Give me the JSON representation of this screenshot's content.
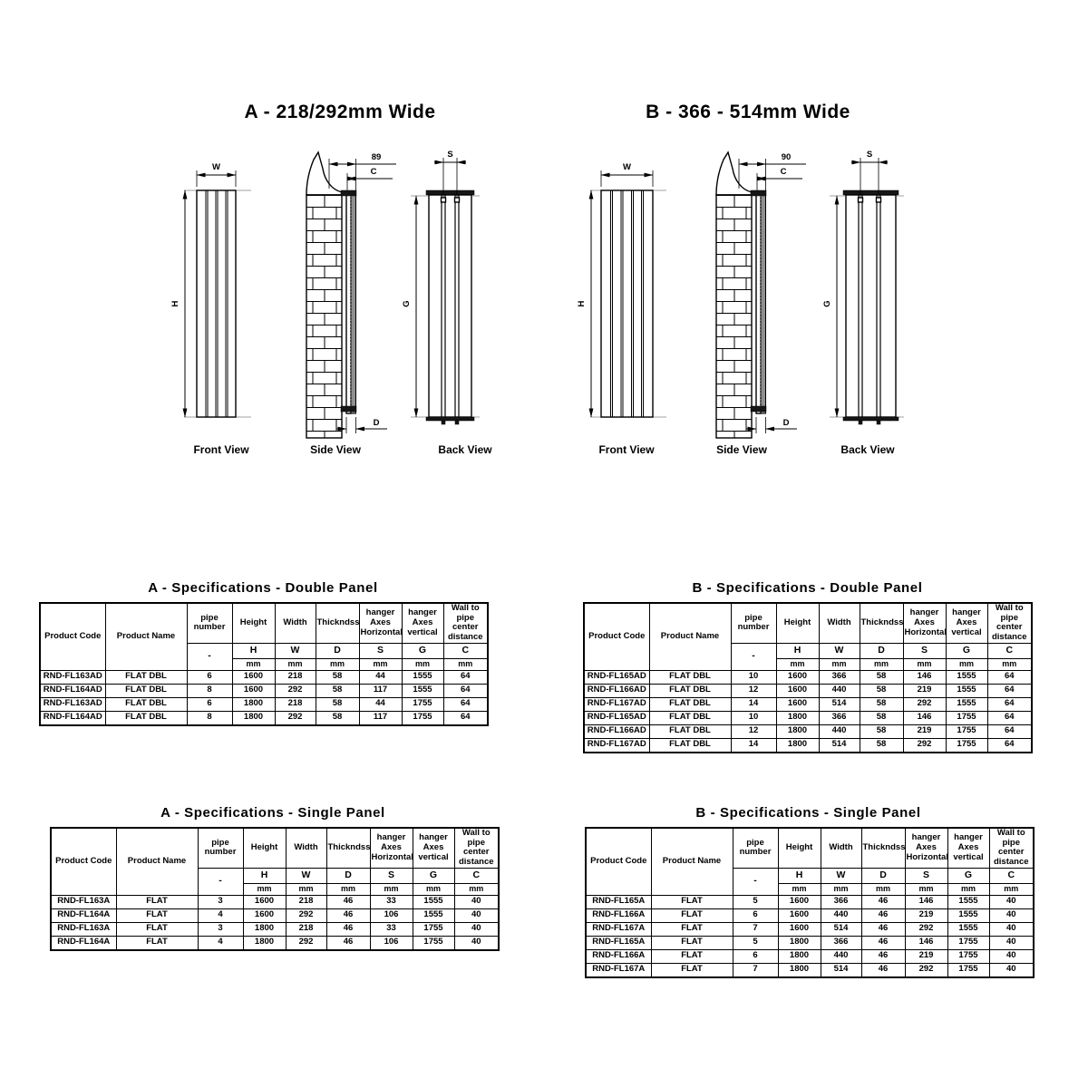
{
  "sections": {
    "a": {
      "title": "A - 218/292mm Wide",
      "views": {
        "front": "Front View",
        "side": "Side View",
        "back": "Back View"
      },
      "dims": {
        "w": "W",
        "h": "H",
        "s": "S",
        "g": "G",
        "c": "C",
        "d": "D",
        "wall_offset": "89"
      }
    },
    "b": {
      "title": "B - 366 - 514mm Wide",
      "views": {
        "front": "Front View",
        "side": "Side View",
        "back": "Back View"
      },
      "dims": {
        "w": "W",
        "h": "H",
        "s": "S",
        "g": "G",
        "c": "C",
        "d": "D",
        "wall_offset": "90"
      }
    }
  },
  "colors": {
    "line": "#000000",
    "guide": "#b3b3b3",
    "panel_fill": "#8f8f8f"
  },
  "spec_tables": [
    {
      "id": "a-double",
      "title": "A - Specifications - Double Panel",
      "headers": [
        "Product Code",
        "Product Name",
        "pipe number",
        "Height",
        "Width",
        "Thickndss",
        "hanger Axes Horizontal",
        "hanger Axes vertical",
        "Wall to pipe center distance"
      ],
      "sub_headers": [
        "-",
        "H",
        "W",
        "D",
        "S",
        "G",
        "C"
      ],
      "units": [
        "mm",
        "mm",
        "mm",
        "mm",
        "mm",
        "mm"
      ],
      "rows": [
        [
          "RND-FL163AD",
          "FLAT DBL",
          "6",
          "1600",
          "218",
          "58",
          "44",
          "1555",
          "64"
        ],
        [
          "RND-FL164AD",
          "FLAT DBL",
          "8",
          "1600",
          "292",
          "58",
          "117",
          "1555",
          "64"
        ],
        [
          "RND-FL163AD",
          "FLAT DBL",
          "6",
          "1800",
          "218",
          "58",
          "44",
          "1755",
          "64"
        ],
        [
          "RND-FL164AD",
          "FLAT DBL",
          "8",
          "1800",
          "292",
          "58",
          "117",
          "1755",
          "64"
        ]
      ]
    },
    {
      "id": "b-double",
      "title": "B - Specifications - Double Panel",
      "headers": [
        "Product Code",
        "Product Name",
        "pipe number",
        "Height",
        "Width",
        "Thickndss",
        "hanger Axes Horizontal",
        "hanger Axes vertical",
        "Wall to pipe center distance"
      ],
      "sub_headers": [
        "-",
        "H",
        "W",
        "D",
        "S",
        "G",
        "C"
      ],
      "units": [
        "mm",
        "mm",
        "mm",
        "mm",
        "mm",
        "mm"
      ],
      "rows": [
        [
          "RND-FL165AD",
          "FLAT DBL",
          "10",
          "1600",
          "366",
          "58",
          "146",
          "1555",
          "64"
        ],
        [
          "RND-FL166AD",
          "FLAT DBL",
          "12",
          "1600",
          "440",
          "58",
          "219",
          "1555",
          "64"
        ],
        [
          "RND-FL167AD",
          "FLAT DBL",
          "14",
          "1600",
          "514",
          "58",
          "292",
          "1555",
          "64"
        ],
        [
          "RND-FL165AD",
          "FLAT DBL",
          "10",
          "1800",
          "366",
          "58",
          "146",
          "1755",
          "64"
        ],
        [
          "RND-FL166AD",
          "FLAT DBL",
          "12",
          "1800",
          "440",
          "58",
          "219",
          "1755",
          "64"
        ],
        [
          "RND-FL167AD",
          "FLAT DBL",
          "14",
          "1800",
          "514",
          "58",
          "292",
          "1755",
          "64"
        ]
      ]
    },
    {
      "id": "a-single",
      "title": "A - Specifications - Single Panel",
      "headers": [
        "Product Code",
        "Product Name",
        "pipe number",
        "Height",
        "Width",
        "Thickndss",
        "hanger Axes Horizontal",
        "hanger Axes vertical",
        "Wall to pipe center distance"
      ],
      "sub_headers": [
        "-",
        "H",
        "W",
        "D",
        "S",
        "G",
        "C"
      ],
      "units": [
        "mm",
        "mm",
        "mm",
        "mm",
        "mm",
        "mm"
      ],
      "rows": [
        [
          "RND-FL163A",
          "FLAT",
          "3",
          "1600",
          "218",
          "46",
          "33",
          "1555",
          "40"
        ],
        [
          "RND-FL164A",
          "FLAT",
          "4",
          "1600",
          "292",
          "46",
          "106",
          "1555",
          "40"
        ],
        [
          "RND-FL163A",
          "FLAT",
          "3",
          "1800",
          "218",
          "46",
          "33",
          "1755",
          "40"
        ],
        [
          "RND-FL164A",
          "FLAT",
          "4",
          "1800",
          "292",
          "46",
          "106",
          "1755",
          "40"
        ]
      ]
    },
    {
      "id": "b-single",
      "title": "B - Specifications - Single Panel",
      "headers": [
        "Product Code",
        "Product Name",
        "pipe number",
        "Height",
        "Width",
        "Thickndss",
        "hanger Axes Horizontal",
        "hanger Axes vertical",
        "Wall to pipe center distance"
      ],
      "sub_headers": [
        "-",
        "H",
        "W",
        "D",
        "S",
        "G",
        "C"
      ],
      "units": [
        "mm",
        "mm",
        "mm",
        "mm",
        "mm",
        "mm"
      ],
      "rows": [
        [
          "RND-FL165A",
          "FLAT",
          "5",
          "1600",
          "366",
          "46",
          "146",
          "1555",
          "40"
        ],
        [
          "RND-FL166A",
          "FLAT",
          "6",
          "1600",
          "440",
          "46",
          "219",
          "1555",
          "40"
        ],
        [
          "RND-FL167A",
          "FLAT",
          "7",
          "1600",
          "514",
          "46",
          "292",
          "1555",
          "40"
        ],
        [
          "RND-FL165A",
          "FLAT",
          "5",
          "1800",
          "366",
          "46",
          "146",
          "1755",
          "40"
        ],
        [
          "RND-FL166A",
          "FLAT",
          "6",
          "1800",
          "440",
          "46",
          "219",
          "1755",
          "40"
        ],
        [
          "RND-FL167A",
          "FLAT",
          "7",
          "1800",
          "514",
          "46",
          "292",
          "1755",
          "40"
        ]
      ]
    }
  ]
}
